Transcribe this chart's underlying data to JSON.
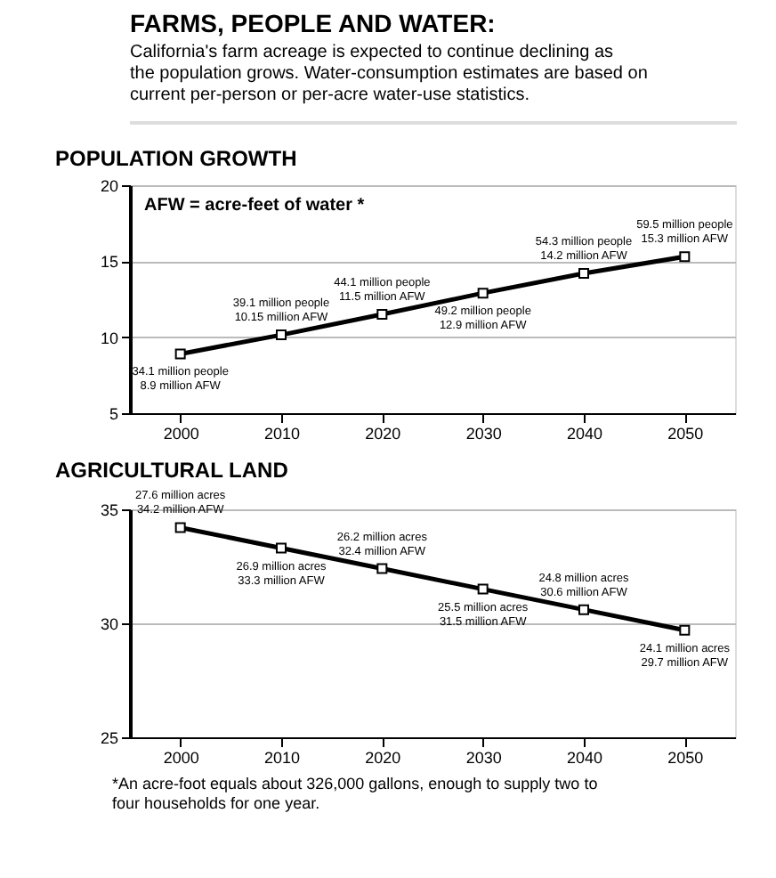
{
  "chart_data": [
    {
      "type": "other",
      "title": "FARMS, PEOPLE AND WATER:",
      "subtitle": "California's farm acreage is expected to continue declining as the population grows. Water-consumption estimates are based on current per-person or per-acre water-use statistics."
    },
    {
      "type": "line",
      "title": "POPULATION GROWTH",
      "x": [
        2000,
        2010,
        2020,
        2030,
        2040,
        2050
      ],
      "xlim": [
        1995,
        2055
      ],
      "xticks": [
        2000,
        2010,
        2020,
        2030,
        2040,
        2050
      ],
      "ylim": [
        5,
        20
      ],
      "yticks": [
        5,
        10,
        15,
        20
      ],
      "grid": "y",
      "marker": "square",
      "legend": false,
      "series": [
        {
          "color": "#000000",
          "values": [
            8.9,
            10.15,
            11.5,
            12.9,
            14.2,
            15.3
          ]
        }
      ],
      "annotations": [
        "AFW = acre-feet of water *",
        {
          "text": "34.1 million people\n8.9 million AFW",
          "x": 2000,
          "y": 8.9
        },
        {
          "text": "39.1 million people\n10.15 million AFW",
          "x": 2010,
          "y": 10.15
        },
        {
          "text": "44.1 million people\n11.5 million AFW",
          "x": 2020,
          "y": 11.5
        },
        {
          "text": "49.2 million people\n12.9 million AFW",
          "x": 2030,
          "y": 12.9
        },
        {
          "text": "54.3 million people\n14.2 million AFW",
          "x": 2040,
          "y": 14.2
        },
        {
          "text": "59.5 million people\n15.3 million AFW",
          "x": 2050,
          "y": 15.3
        }
      ]
    },
    {
      "type": "line",
      "title": "AGRICULTURAL LAND",
      "x": [
        2000,
        2010,
        2020,
        2030,
        2040,
        2050
      ],
      "xlim": [
        1995,
        2055
      ],
      "xticks": [
        2000,
        2010,
        2020,
        2030,
        2040,
        2050
      ],
      "ylim": [
        25,
        35
      ],
      "yticks": [
        25,
        30,
        35
      ],
      "grid": "y",
      "marker": "square",
      "legend": false,
      "series": [
        {
          "color": "#000000",
          "values": [
            34.2,
            33.3,
            32.4,
            31.5,
            30.6,
            29.7
          ]
        }
      ],
      "annotations": [
        "*An acre-foot equals about 326,000 gallons, enough to supply two to four households for one year.",
        {
          "text": "27.6 million acres\n34.2 million AFW",
          "x": 2000,
          "y": 34.2
        },
        {
          "text": "26.9 million acres\n33.3 million AFW",
          "x": 2010,
          "y": 33.3
        },
        {
          "text": "26.2 million acres\n32.4 million AFW",
          "x": 2020,
          "y": 32.4
        },
        {
          "text": "25.5 million acres\n31.5 million AFW",
          "x": 2030,
          "y": 31.5
        },
        {
          "text": "24.8 million acres\n30.6 million AFW",
          "x": 2040,
          "y": 30.6
        },
        {
          "text": "24.1 million acres\n29.7 million AFW",
          "x": 2050,
          "y": 29.7
        }
      ]
    }
  ]
}
